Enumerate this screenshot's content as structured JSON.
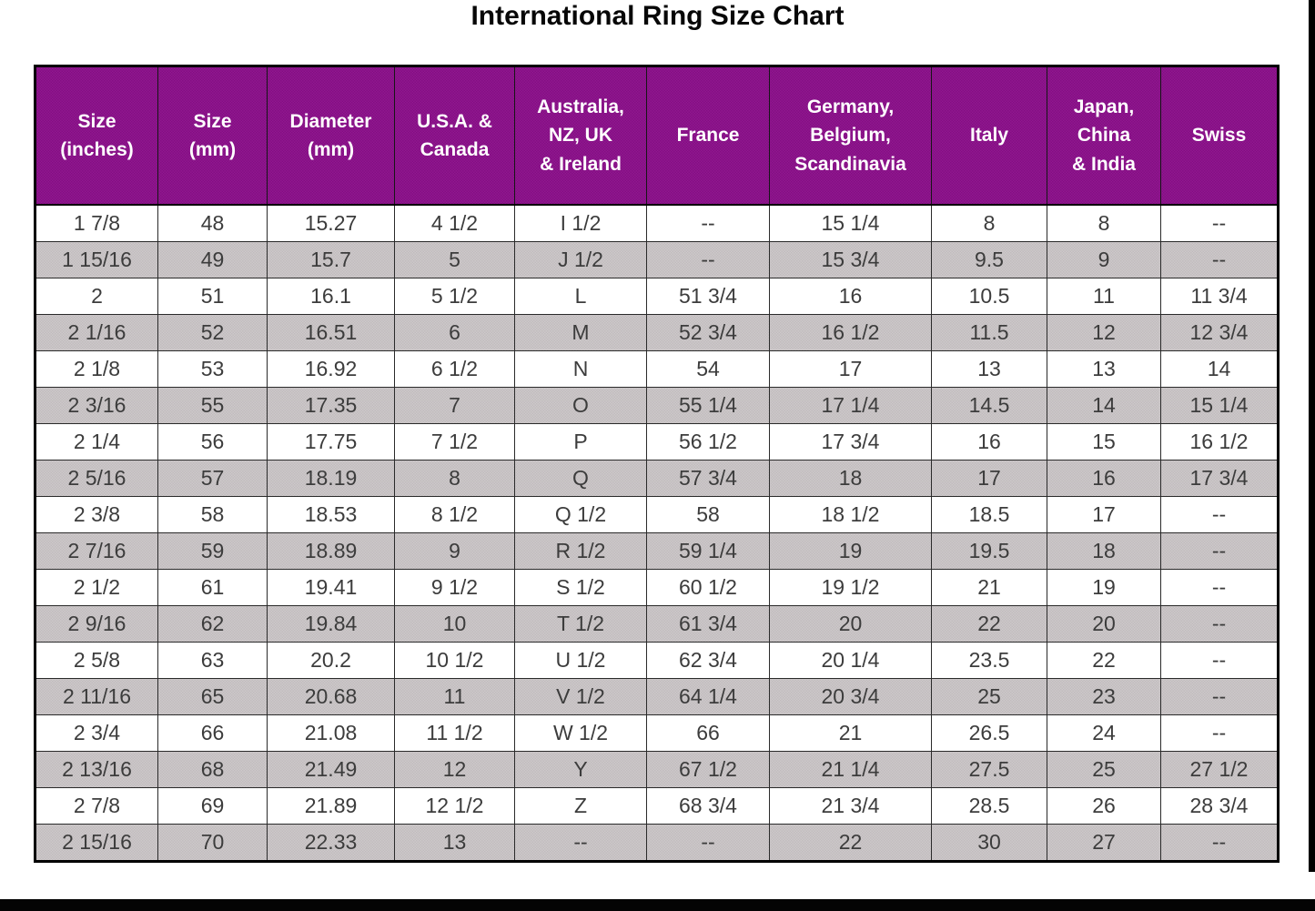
{
  "title": "International Ring Size Chart",
  "table": {
    "headers": [
      "Size\n(inches)",
      "Size\n(mm)",
      "Diameter\n(mm)",
      "U.S.A. &\nCanada",
      "Australia,\nNZ, UK\n& Ireland",
      "France",
      "Germany,\nBelgium,\nScandinavia",
      "Italy",
      "Japan,\nChina\n& India",
      "Swiss"
    ]
  },
  "chart_data": {
    "type": "table",
    "title": "International Ring Size Chart",
    "columns": [
      "Size (inches)",
      "Size (mm)",
      "Diameter (mm)",
      "U.S.A. & Canada",
      "Australia, NZ, UK & Ireland",
      "France",
      "Germany, Belgium, Scandinavia",
      "Italy",
      "Japan, China & India",
      "Swiss"
    ],
    "rows": [
      [
        "1 7/8",
        "48",
        "15.27",
        "4 1/2",
        "I 1/2",
        "--",
        "15 1/4",
        "8",
        "8",
        "--"
      ],
      [
        "1 15/16",
        "49",
        "15.7",
        "5",
        "J 1/2",
        "--",
        "15 3/4",
        "9.5",
        "9",
        "--"
      ],
      [
        "2",
        "51",
        "16.1",
        "5 1/2",
        "L",
        "51 3/4",
        "16",
        "10.5",
        "11",
        "11 3/4"
      ],
      [
        "2 1/16",
        "52",
        "16.51",
        "6",
        "M",
        "52 3/4",
        "16 1/2",
        "11.5",
        "12",
        "12 3/4"
      ],
      [
        "2 1/8",
        "53",
        "16.92",
        "6 1/2",
        "N",
        "54",
        "17",
        "13",
        "13",
        "14"
      ],
      [
        "2 3/16",
        "55",
        "17.35",
        "7",
        "O",
        "55 1/4",
        "17 1/4",
        "14.5",
        "14",
        "15 1/4"
      ],
      [
        "2 1/4",
        "56",
        "17.75",
        "7 1/2",
        "P",
        "56 1/2",
        "17 3/4",
        "16",
        "15",
        "16 1/2"
      ],
      [
        "2 5/16",
        "57",
        "18.19",
        "8",
        "Q",
        "57 3/4",
        "18",
        "17",
        "16",
        "17 3/4"
      ],
      [
        "2 3/8",
        "58",
        "18.53",
        "8 1/2",
        "Q 1/2",
        "58",
        "18 1/2",
        "18.5",
        "17",
        "--"
      ],
      [
        "2 7/16",
        "59",
        "18.89",
        "9",
        "R 1/2",
        "59 1/4",
        "19",
        "19.5",
        "18",
        "--"
      ],
      [
        "2 1/2",
        "61",
        "19.41",
        "9 1/2",
        "S 1/2",
        "60 1/2",
        "19 1/2",
        "21",
        "19",
        "--"
      ],
      [
        "2 9/16",
        "62",
        "19.84",
        "10",
        "T 1/2",
        "61 3/4",
        "20",
        "22",
        "20",
        "--"
      ],
      [
        "2 5/8",
        "63",
        "20.2",
        "10 1/2",
        "U 1/2",
        "62 3/4",
        "20 1/4",
        "23.5",
        "22",
        "--"
      ],
      [
        "2 11/16",
        "65",
        "20.68",
        "11",
        "V 1/2",
        "64 1/4",
        "20 3/4",
        "25",
        "23",
        "--"
      ],
      [
        "2 3/4",
        "66",
        "21.08",
        "11 1/2",
        "W 1/2",
        "66",
        "21",
        "26.5",
        "24",
        "--"
      ],
      [
        "2 13/16",
        "68",
        "21.49",
        "12",
        "Y",
        "67 1/2",
        "21 1/4",
        "27.5",
        "25",
        "27 1/2"
      ],
      [
        "2 7/8",
        "69",
        "21.89",
        "12 1/2",
        "Z",
        "68 3/4",
        "21 3/4",
        "28.5",
        "26",
        "28 3/4"
      ],
      [
        "2 15/16",
        "70",
        "22.33",
        "13",
        "--",
        "--",
        "22",
        "30",
        "27",
        "--"
      ]
    ]
  },
  "colors": {
    "header_bg": "#8B148A",
    "header_text": "#FFFFFF",
    "row_bg": "#FFFFFF",
    "row_alt_bg": "#C7C3C4",
    "cell_text": "#3C3C3C",
    "border": "#1F1F1F",
    "frame": "#000000",
    "title_text": "#070707"
  }
}
